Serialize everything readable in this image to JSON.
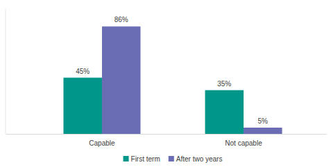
{
  "chart_data": {
    "type": "bar",
    "categories": [
      "Capable",
      "Not capable"
    ],
    "series": [
      {
        "name": "First term",
        "color": "#00968a",
        "values": [
          45,
          35
        ],
        "value_labels": [
          "45%",
          "35%"
        ]
      },
      {
        "name": "After two years",
        "color": "#6a6db3",
        "values": [
          86,
          5
        ],
        "value_labels": [
          "86%",
          "5%"
        ]
      }
    ],
    "ylim": [
      0,
      100
    ],
    "data_labels": true,
    "tick_labels": "x",
    "grid": false,
    "legend": "bottom"
  }
}
